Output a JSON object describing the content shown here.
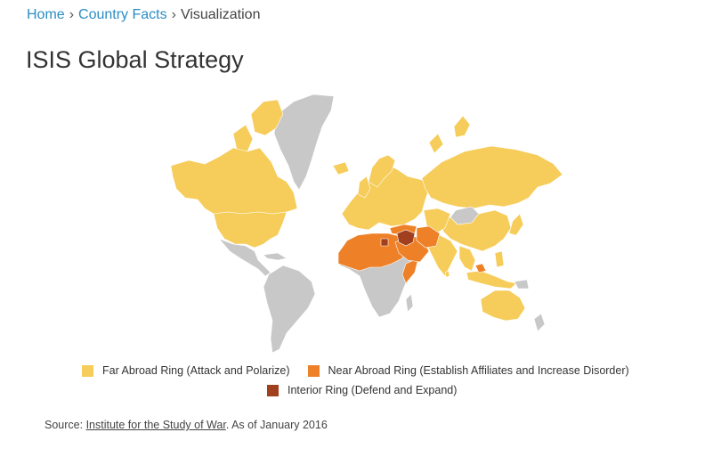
{
  "breadcrumb": {
    "items": [
      {
        "label": "Home"
      },
      {
        "label": "Country Facts"
      }
    ],
    "separator": "›",
    "current": "Visualization"
  },
  "title": "ISIS Global Strategy",
  "colors": {
    "far": "#f6cc5a",
    "near": "#ee8027",
    "interior": "#a0401f",
    "neutral": "#c8c8c8",
    "link": "#2b8dc4"
  },
  "legend": [
    {
      "key": "far",
      "label": "Far Abroad Ring (Attack and Polarize)"
    },
    {
      "key": "near",
      "label": "Near Abroad Ring (Establish Affiliates and Increase Disorder)"
    },
    {
      "key": "interior",
      "label": "Interior Ring (Defend and Expand)"
    }
  ],
  "source": {
    "prefix": "Source: ",
    "link_text": "Institute for the Study of War",
    "suffix": ". As of January 2016"
  }
}
